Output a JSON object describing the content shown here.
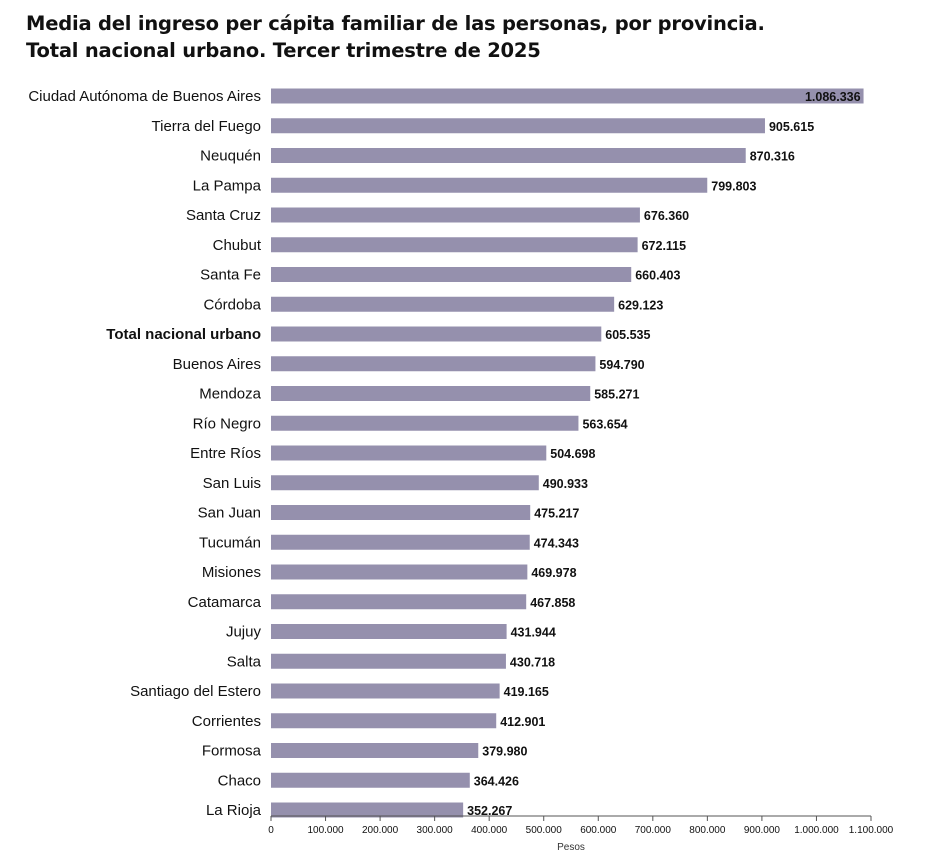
{
  "title_line1": "Media del ingreso per cápita familiar de las personas, por provincia.",
  "title_line2": "Total nacional urbano. Tercer trimestre de 2025",
  "colors": {
    "bar": "#9590ad",
    "axis": "#555555",
    "text": "#111111"
  },
  "chart_data": {
    "type": "bar",
    "orientation": "horizontal",
    "title": "Media del ingreso per cápita familiar de las personas, por provincia. Total nacional urbano. Tercer trimestre de 2025",
    "xlabel": "Pesos",
    "ylabel": "",
    "xlim": [
      0,
      1100000
    ],
    "grid": false,
    "categories": [
      "Ciudad Autónoma de Buenos Aires",
      "Tierra del Fuego",
      "Neuquén",
      "La Pampa",
      "Santa Cruz",
      "Chubut",
      "Santa Fe",
      "Córdoba",
      "Total nacional urbano",
      "Buenos Aires",
      "Mendoza",
      "Río Negro",
      "Entre Ríos",
      "San Luis",
      "San Juan",
      "Tucumán",
      "Misiones",
      "Catamarca",
      "Jujuy",
      "Salta",
      "Santiago del Estero",
      "Corrientes",
      "Formosa",
      "Chaco",
      "La Rioja"
    ],
    "values": [
      1086336,
      905615,
      870316,
      799803,
      676360,
      672115,
      660403,
      629123,
      605535,
      594790,
      585271,
      563654,
      504698,
      490933,
      475217,
      474343,
      469978,
      467858,
      431944,
      430718,
      419165,
      412901,
      379980,
      364426,
      352267
    ],
    "value_labels": [
      "1.086.336",
      "905.615",
      "870.316",
      "799.803",
      "676.360",
      "672.115",
      "660.403",
      "629.123",
      "605.535",
      "594.790",
      "585.271",
      "563.654",
      "504.698",
      "490.933",
      "475.217",
      "474.343",
      "469.978",
      "467.858",
      "431.944",
      "430.718",
      "419.165",
      "412.901",
      "379.980",
      "364.426",
      "352.267"
    ],
    "highlight_category": "Total nacional urbano",
    "xticks": [
      0,
      100000,
      200000,
      300000,
      400000,
      500000,
      600000,
      700000,
      800000,
      900000,
      1000000,
      1100000
    ],
    "xtick_labels": [
      "0",
      "100.000",
      "200.000",
      "300.000",
      "400.000",
      "500.000",
      "600.000",
      "700.000",
      "800.000",
      "900.000",
      "1.000.000",
      "1.100.000"
    ]
  }
}
